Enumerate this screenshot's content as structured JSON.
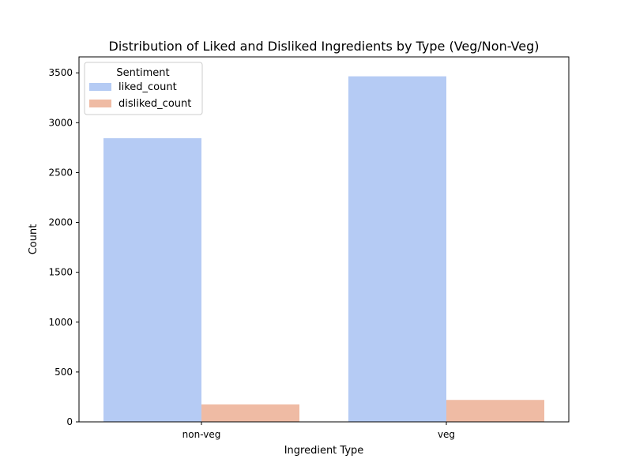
{
  "chart_data": {
    "type": "bar",
    "title": "Distribution of Liked and Disliked Ingredients by Type (Veg/Non-Veg)",
    "xlabel": "Ingredient Type",
    "ylabel": "Count",
    "categories": [
      "non-veg",
      "veg"
    ],
    "series": [
      {
        "name": "liked_count",
        "color": "#b5cbf4",
        "values": [
          2845,
          3465
        ]
      },
      {
        "name": "disliked_count",
        "color": "#efbba4",
        "values": [
          175,
          220
        ]
      }
    ],
    "ylim": [
      0,
      3660
    ],
    "yticks": [
      0,
      500,
      1000,
      1500,
      2000,
      2500,
      3000,
      3500
    ],
    "legend": {
      "title": "Sentiment",
      "position": "top-left"
    },
    "grid": false
  }
}
